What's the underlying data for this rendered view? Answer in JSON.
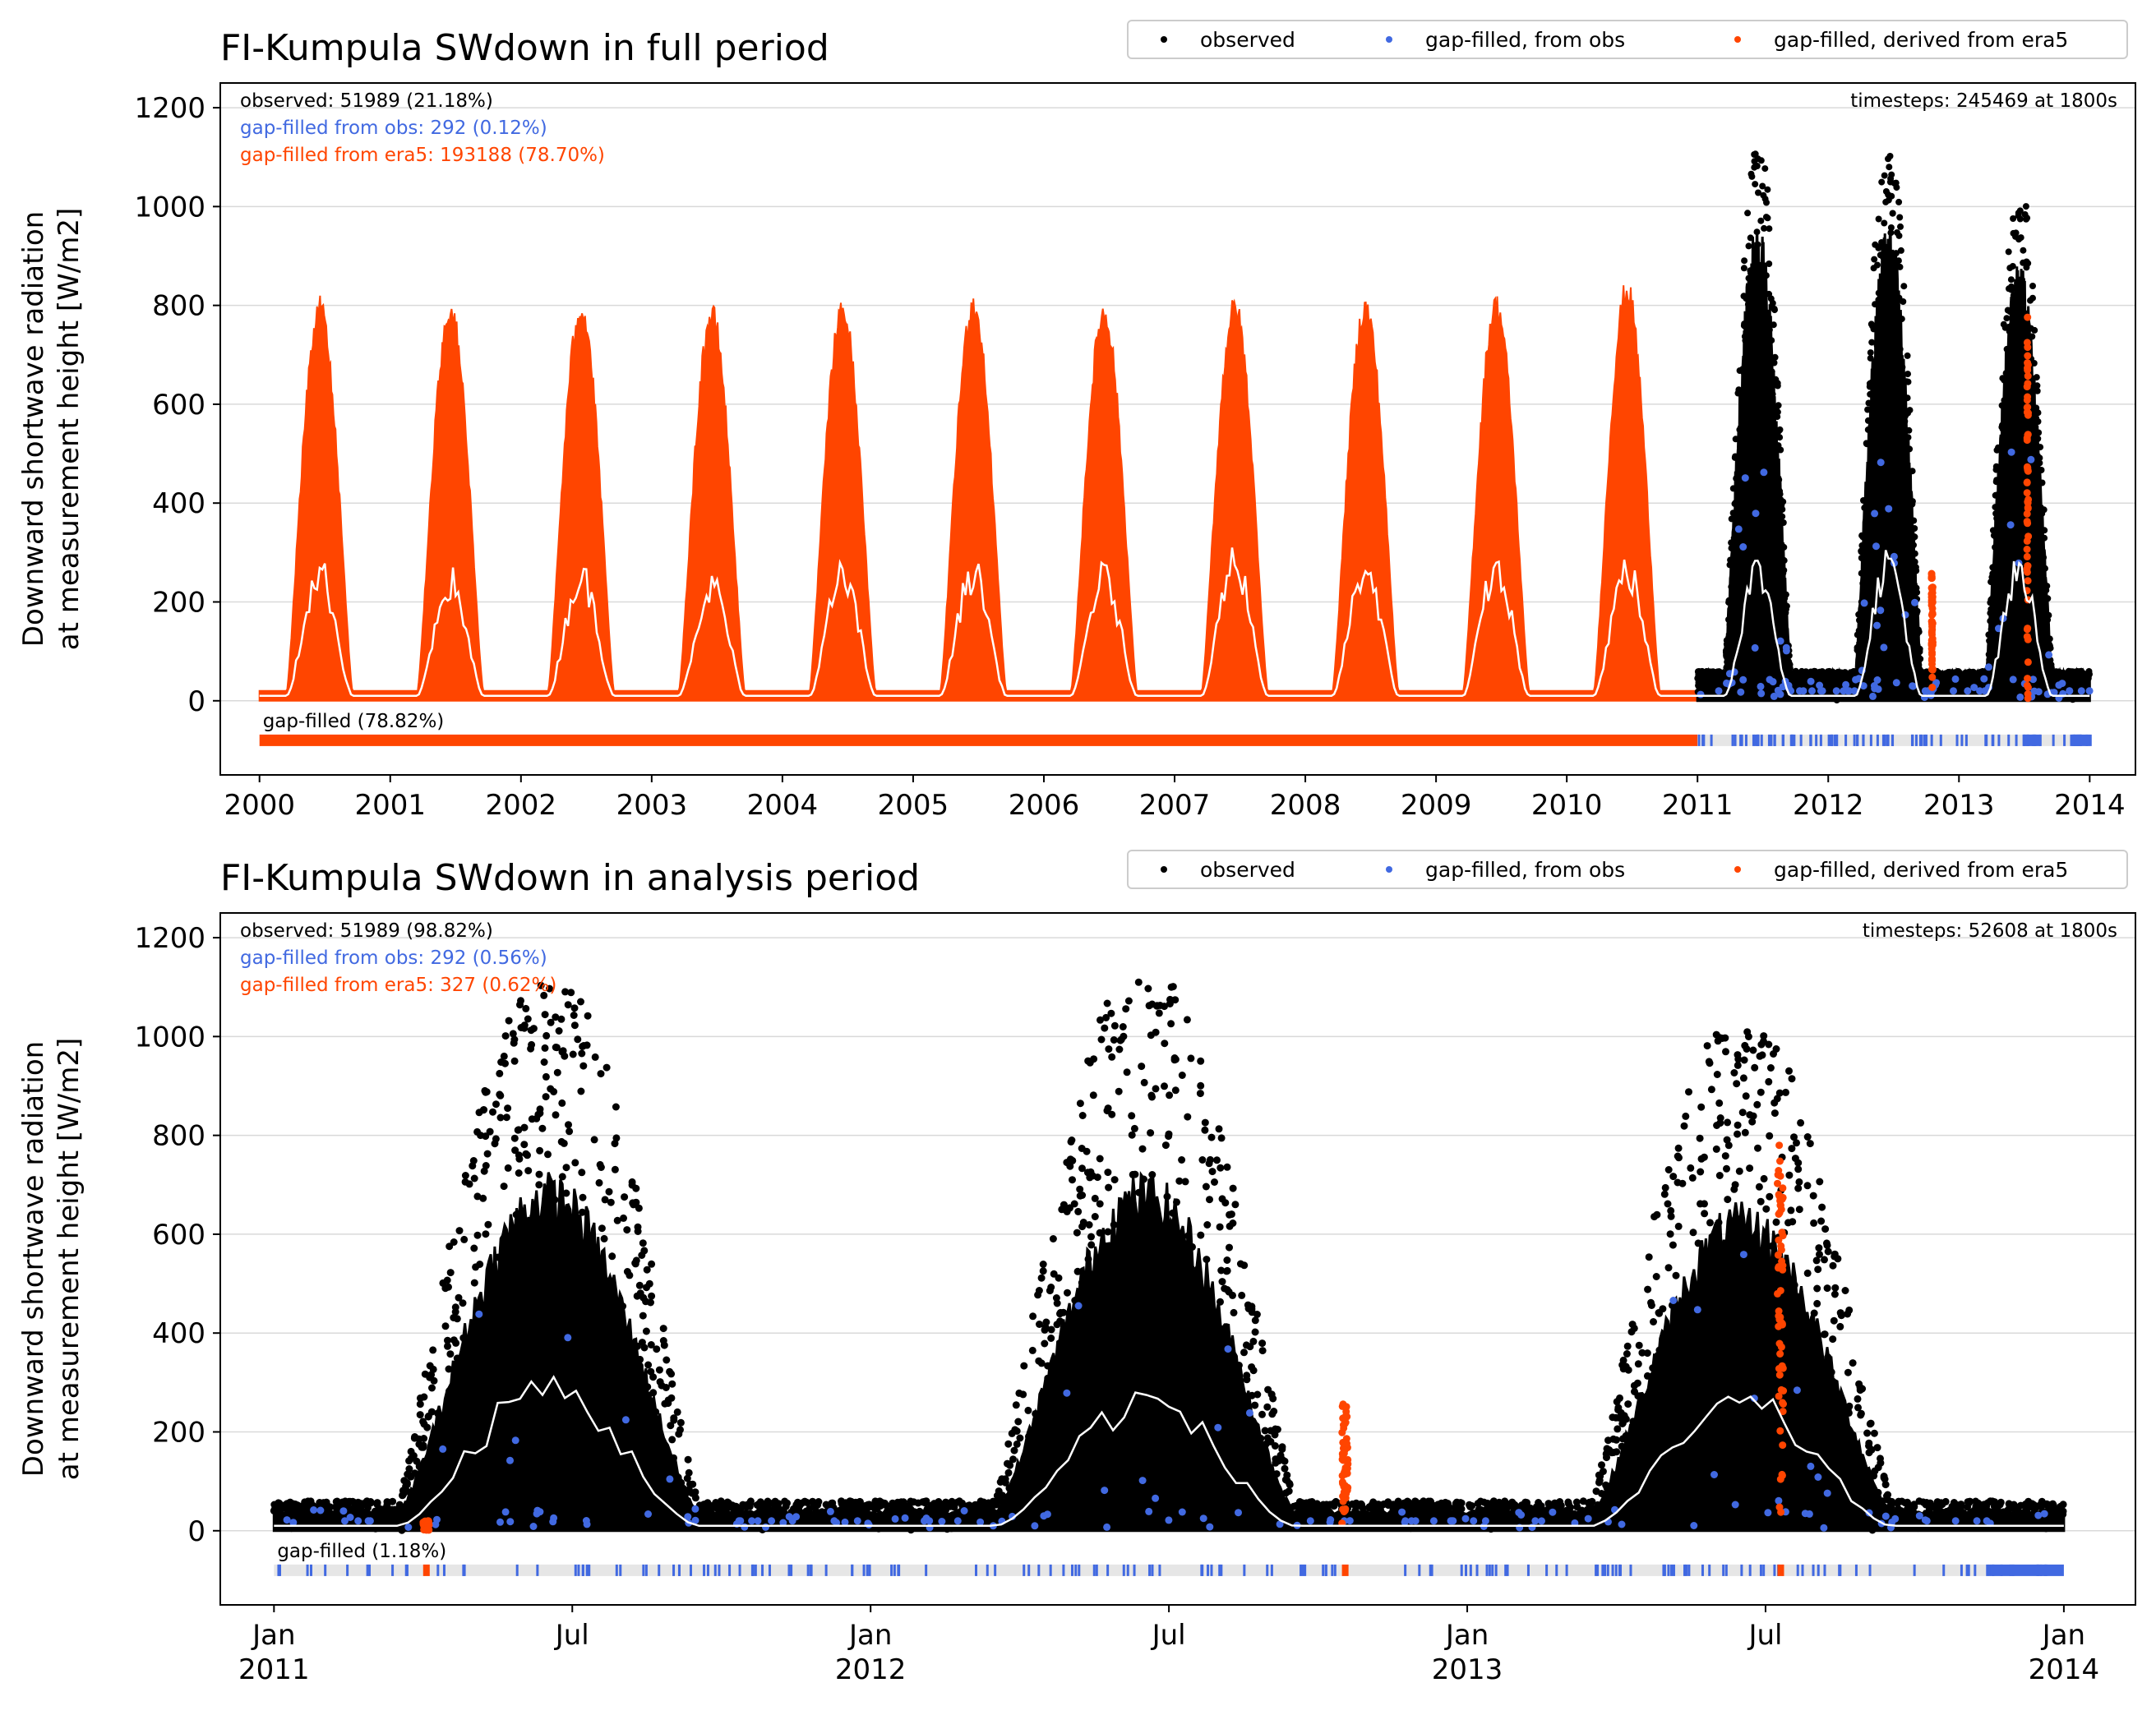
{
  "colors": {
    "observed": "#000000",
    "gapfill_obs": "#4169e1",
    "gapfill_era5": "#ff4500",
    "mean_line": "#ffffff",
    "grid": "#d9d9d9",
    "gap_bar_bg": "#e6e6e6"
  },
  "legend": {
    "observed": "observed",
    "from_obs": "gap-filled, from obs",
    "from_era5": "gap-filled, derived from era5"
  },
  "chart_data": [
    {
      "type": "scatter",
      "title": "FI-Kumpula SWdown in full period",
      "ylabel_line1": "Downward shortwave radiation",
      "ylabel_line2": "at measurement height [W/m2]",
      "ylim": [
        -150,
        1250
      ],
      "yticks": [
        0,
        200,
        400,
        600,
        800,
        1000,
        1200
      ],
      "xlim": [
        1999.7,
        2014.35
      ],
      "xticks": [
        2000,
        2001,
        2002,
        2003,
        2004,
        2005,
        2006,
        2007,
        2008,
        2009,
        2010,
        2011,
        2012,
        2013,
        2014
      ],
      "xtick_labels": [
        "2000",
        "2001",
        "2002",
        "2003",
        "2004",
        "2005",
        "2006",
        "2007",
        "2008",
        "2009",
        "2010",
        "2011",
        "2012",
        "2013",
        "2014"
      ],
      "grid": "horizontal",
      "legend_position": "top-right (above axes)",
      "stats": {
        "observed": "observed: 51989 (21.18%)",
        "from_obs": "gap-filled from obs: 292 (0.12%)",
        "from_era5": "gap-filled from era5: 193188 (78.70%)",
        "timesteps": "timesteps: 245469 at 1800s",
        "gap_filled": "gap-filled (78.82%)"
      },
      "series": [
        {
          "name": "gap-filled, derived from era5",
          "x_range": [
            2000.0,
            2011.0
          ],
          "annual_peak_values": [
            800,
            795,
            800,
            785,
            795,
            805,
            790,
            800,
            800,
            805,
            835
          ],
          "peak_times": [
            2000.44,
            2001.44,
            2002.44,
            2003.44,
            2004.44,
            2005.44,
            2006.44,
            2007.44,
            2008.44,
            2009.44,
            2010.44
          ]
        },
        {
          "name": "observed",
          "x_range": [
            2011.0,
            2014.0
          ],
          "annual_peak_values": [
            1110,
            1110,
            1010
          ]
        },
        {
          "name": "gap-filled, from obs",
          "x_range": [
            2011.0,
            2014.0
          ]
        },
        {
          "name": "gap-filled, derived from era5",
          "x_segments": [
            [
              2012.79,
              2012.8
            ],
            [
              2013.52,
              2013.53
            ]
          ],
          "max_values": [
            260,
            780
          ]
        }
      ],
      "mean_line": {
        "peak_values": [
          295,
          275,
          285,
          265,
          285,
          295,
          285,
          325,
          305,
          300,
          300,
          300,
          320,
          300
        ],
        "winter_value": 10
      }
    },
    {
      "type": "scatter",
      "title": "FI-Kumpula SWdown in analysis period",
      "ylabel_line1": "Downward shortwave radiation",
      "ylabel_line2": "at measurement height [W/m2]",
      "ylim": [
        -150,
        1250
      ],
      "yticks": [
        0,
        200,
        400,
        600,
        800,
        1000,
        1200
      ],
      "xlim": [
        2010.91,
        2014.12
      ],
      "xticks": [
        2011.0,
        2011.5,
        2012.0,
        2012.5,
        2013.0,
        2013.5,
        2014.0
      ],
      "xtick_labels": [
        [
          "Jan",
          "2011"
        ],
        [
          "Jul",
          ""
        ],
        [
          "Jan",
          "2012"
        ],
        [
          "Jul",
          ""
        ],
        [
          "Jan",
          "2013"
        ],
        [
          "Jul",
          ""
        ],
        [
          "Jan",
          "2014"
        ]
      ],
      "grid": "horizontal",
      "legend_position": "top-right (above axes)",
      "stats": {
        "observed": "observed: 51989 (98.82%)",
        "from_obs": "gap-filled from obs: 292 (0.56%)",
        "from_era5": "gap-filled from era5: 327 (0.62%)",
        "timesteps": "timesteps: 52608 at 1800s",
        "gap_filled": "gap-filled (1.18%)"
      },
      "series": [
        {
          "name": "observed",
          "x_range": [
            2011.0,
            2014.0
          ],
          "annual_peak_values": [
            1110,
            1110,
            1010
          ]
        },
        {
          "name": "gap-filled, from obs",
          "x_range": [
            2011.0,
            2014.0
          ]
        },
        {
          "name": "gap-filled, derived from era5",
          "x_segments": [
            [
              2011.25,
              2011.26
            ],
            [
              2012.79,
              2012.8
            ],
            [
              2013.52,
              2013.53
            ]
          ],
          "max_values": [
            20,
            260,
            780
          ]
        }
      ],
      "mean_line": {
        "peak_values": [
          330,
          300,
          290
        ],
        "winter_value": 10
      }
    }
  ]
}
